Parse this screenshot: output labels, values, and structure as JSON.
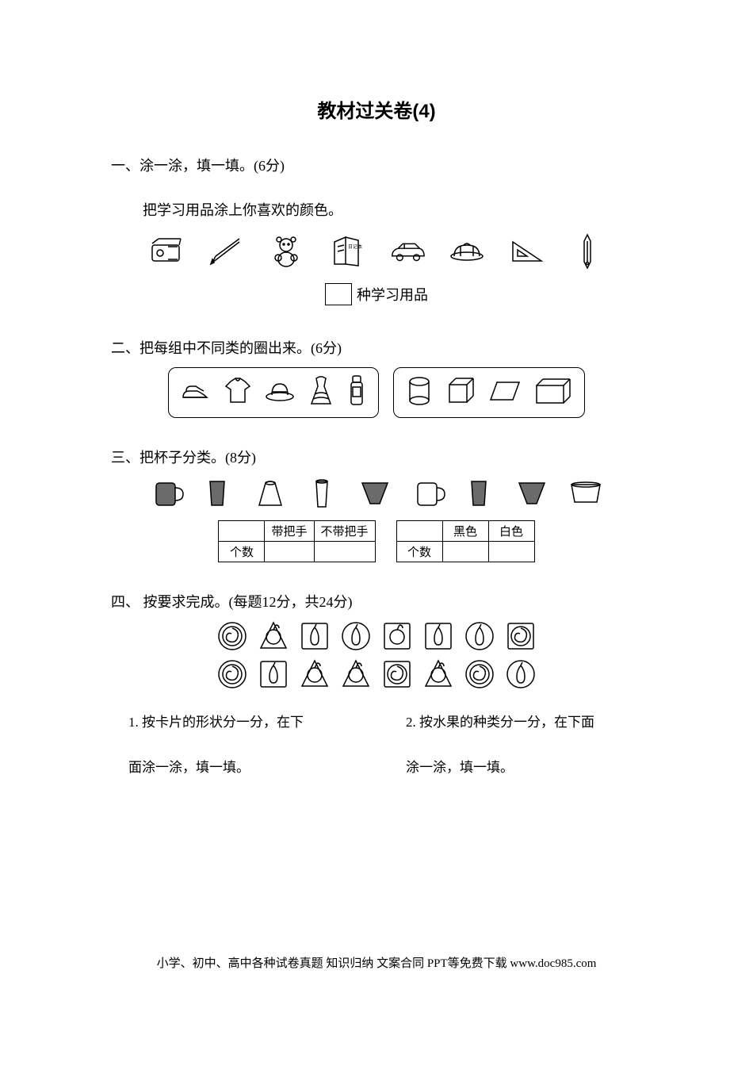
{
  "title": "教材过关卷(4)",
  "section1": {
    "heading": "一、涂一涂，填一填。(6分)",
    "sub": "把学习用品涂上你喜欢的颜色。",
    "fill_suffix": "种学习用品",
    "icons": [
      "sharpener",
      "pencil",
      "toy-bear",
      "notebook",
      "car",
      "cap",
      "triangle-ruler",
      "fountain-pen"
    ]
  },
  "section2": {
    "heading": "二、把每组中不同类的圈出来。(6分)",
    "group1_icons": [
      "shoes",
      "shirt",
      "hat",
      "dress",
      "bottle"
    ],
    "group2_icons": [
      "cylinder",
      "cube",
      "parallelogram",
      "cuboid"
    ]
  },
  "section3": {
    "heading": "三、把杯子分类。(8分)",
    "cups": [
      {
        "type": "mug",
        "filled": true
      },
      {
        "type": "glass",
        "filled": true
      },
      {
        "type": "cup-trapezoid",
        "filled": false
      },
      {
        "type": "tall-glass",
        "filled": false
      },
      {
        "type": "cup-inv-trapezoid",
        "filled": true
      },
      {
        "type": "mug",
        "filled": false
      },
      {
        "type": "glass",
        "filled": true
      },
      {
        "type": "cup-inv-trapezoid",
        "filled": true
      },
      {
        "type": "cup-wide",
        "filled": false
      }
    ],
    "table1": {
      "headers": [
        "",
        "带把手",
        "不带把手"
      ],
      "row_label": "个数"
    },
    "table2": {
      "headers": [
        "",
        "黑色",
        "白色"
      ],
      "row_label": "个数"
    }
  },
  "section4": {
    "heading": "四、 按要求完成。(每题12分，共24分)",
    "cards_row1": [
      {
        "shape": "round",
        "fruit": "spiral"
      },
      {
        "shape": "triangle",
        "fruit": "fruit"
      },
      {
        "shape": "square",
        "fruit": "pear"
      },
      {
        "shape": "round",
        "fruit": "pear"
      },
      {
        "shape": "square",
        "fruit": "fruit"
      },
      {
        "shape": "square",
        "fruit": "pear"
      },
      {
        "shape": "round",
        "fruit": "pear"
      },
      {
        "shape": "square",
        "fruit": "spiral"
      }
    ],
    "cards_row2": [
      {
        "shape": "round",
        "fruit": "spiral"
      },
      {
        "shape": "square",
        "fruit": "pear"
      },
      {
        "shape": "triangle",
        "fruit": "fruit"
      },
      {
        "shape": "triangle",
        "fruit": "fruit"
      },
      {
        "shape": "square",
        "fruit": "spiral"
      },
      {
        "shape": "triangle",
        "fruit": "fruit"
      },
      {
        "shape": "round",
        "fruit": "spiral"
      },
      {
        "shape": "round",
        "fruit": "pear"
      }
    ],
    "q1_line1": "1. 按卡片的形状分一分，在下",
    "q1_line2": "面涂一涂，填一填。",
    "q2_line1": "2. 按水果的种类分一分，在下面",
    "q2_line2": "涂一涂，填一填。"
  },
  "footer": "小学、初中、高中各种试卷真题 知识归纳 文案合同 PPT等免费下载    www.doc985.com",
  "colors": {
    "stroke": "#000000",
    "fill_dark": "#6b6b6b",
    "fill_light": "#ffffff"
  }
}
